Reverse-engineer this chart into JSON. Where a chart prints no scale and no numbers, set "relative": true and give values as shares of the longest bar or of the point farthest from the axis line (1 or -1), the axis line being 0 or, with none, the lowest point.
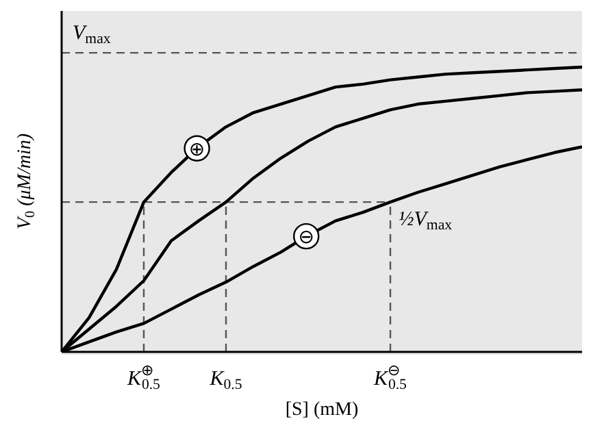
{
  "chart_data": {
    "type": "line",
    "relative": true,
    "xlabel": "[S] (mM)",
    "ylabel": "V$_{0}$ (μM/min)",
    "tick_labels": "x",
    "legend": false,
    "grid": false,
    "marker": "none",
    "line_style": "solid",
    "categories": [
      null,
      null,
      null,
      "K$^{⊕}$$_{0.5}$",
      null,
      null,
      "K$_{0.5}$",
      null,
      null,
      null,
      null,
      null,
      "K$^{⊖}$$_{0.5}$",
      null,
      null,
      null,
      null,
      null,
      null,
      null
    ],
    "series": [
      {
        "name": "⊕",
        "color": "#000000",
        "values": [
          0,
          0.12,
          0.29,
          0.526,
          0.63,
          0.72,
          0.79,
          0.84,
          0.87,
          0.9,
          0.93,
          0.94,
          0.955,
          0.965,
          0.975,
          0.98,
          0.985,
          0.99,
          0.995,
          1
        ]
      },
      {
        "color": "#000000",
        "values": [
          0,
          0.08,
          0.16,
          0.25,
          0.39,
          0.46,
          0.526,
          0.61,
          0.68,
          0.74,
          0.79,
          0.82,
          0.85,
          0.87,
          0.88,
          0.89,
          0.9,
          0.91,
          0.915,
          0.92
        ]
      },
      {
        "name": "⊖",
        "color": "#000000",
        "values": [
          0,
          0.035,
          0.07,
          0.1,
          0.15,
          0.2,
          0.245,
          0.3,
          0.35,
          0.41,
          0.46,
          0.49,
          0.526,
          0.56,
          0.59,
          0.62,
          0.65,
          0.675,
          0.7,
          0.72
        ]
      }
    ],
    "ref_lines": [
      {
        "axis": "y",
        "value": 1.05,
        "label": "V$_{max}$",
        "color": "#555555",
        "line_style": "dashed"
      },
      {
        "axis": "y",
        "value": 0.526,
        "label": "½V$_{max}$",
        "color": "#555555",
        "line_style": "dashed"
      },
      {
        "axis": "x",
        "value": "K$^{⊕}$$_{0.5}$",
        "color": "#555555",
        "line_style": "dashed"
      },
      {
        "axis": "x",
        "value": "K$_{0.5}$",
        "color": "#555555",
        "line_style": "dashed"
      },
      {
        "axis": "x",
        "value": "K$^{⊖}$$_{0.5}$",
        "color": "#555555",
        "line_style": "dashed"
      }
    ]
  }
}
